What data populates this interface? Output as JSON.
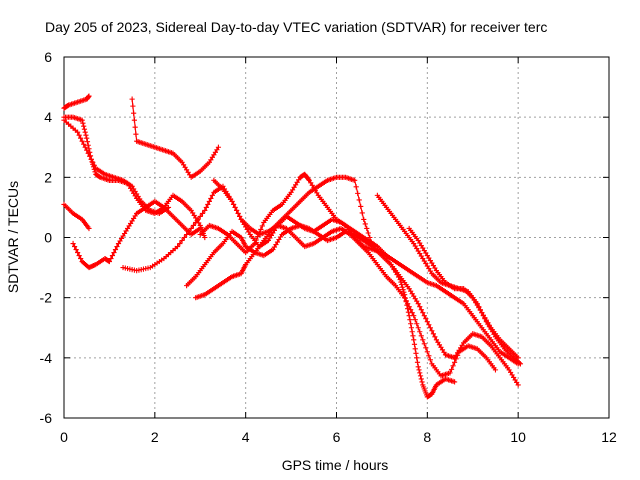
{
  "chart_data": {
    "type": "scatter",
    "title": "Day 205 of 2023, Sidereal Day-to-day VTEC variation (SDTVAR) for receiver terc",
    "xlabel": "GPS time / hours",
    "ylabel": "SDTVAR / TECUs",
    "xlim": [
      0,
      12
    ],
    "ylim": [
      -6,
      6
    ],
    "xticks": [
      "0",
      "2",
      "4",
      "6",
      "8",
      "10",
      "12"
    ],
    "yticks": [
      "-6",
      "-4",
      "-2",
      "0",
      "2",
      "4",
      "6"
    ],
    "grid": true,
    "marker": "+",
    "color": "#ff0000",
    "series": [
      {
        "name": "trace-1",
        "x": [
          0.0,
          0.1,
          0.3,
          0.5,
          0.55
        ],
        "y": [
          4.3,
          4.4,
          4.5,
          4.6,
          4.7
        ]
      },
      {
        "name": "trace-2",
        "x": [
          0.0,
          0.2,
          0.4,
          0.5,
          0.6,
          0.7,
          0.8,
          1.0,
          1.2,
          1.4,
          1.6,
          1.8,
          2.0,
          2.2,
          2.4,
          2.6,
          2.8,
          3.0,
          3.1
        ],
        "y": [
          4.0,
          4.0,
          3.9,
          3.3,
          2.6,
          2.1,
          2.0,
          1.9,
          1.9,
          1.8,
          1.3,
          0.9,
          0.8,
          1.0,
          1.4,
          1.2,
          0.9,
          0.4,
          0.0
        ]
      },
      {
        "name": "trace-3",
        "x": [
          0.0,
          0.3,
          0.5,
          0.7,
          0.9,
          1.1,
          1.3,
          1.5,
          1.7,
          1.9,
          2.1,
          2.3
        ],
        "y": [
          3.9,
          3.5,
          2.9,
          2.3,
          2.1,
          2.0,
          1.9,
          1.7,
          1.2,
          0.9,
          0.8,
          1.0
        ]
      },
      {
        "name": "trace-4",
        "x": [
          1.5,
          1.6,
          1.8,
          2.0,
          2.2,
          2.4,
          2.6,
          2.8,
          3.0,
          3.2,
          3.4
        ],
        "y": [
          4.6,
          3.2,
          3.1,
          3.0,
          2.9,
          2.8,
          2.5,
          2.0,
          2.2,
          2.5,
          3.0
        ]
      },
      {
        "name": "trace-5",
        "x": [
          0.0,
          0.2,
          0.4,
          0.55
        ],
        "y": [
          1.1,
          0.8,
          0.6,
          0.3
        ]
      },
      {
        "name": "trace-6",
        "x": [
          0.2,
          0.4,
          0.55,
          0.7,
          0.9,
          1.0,
          1.2,
          1.4,
          1.6,
          1.8,
          2.0,
          2.2,
          2.4,
          2.6,
          2.8,
          3.0
        ],
        "y": [
          -0.2,
          -0.8,
          -1.0,
          -0.9,
          -0.7,
          -0.8,
          -0.2,
          0.3,
          0.8,
          1.0,
          1.2,
          1.0,
          0.7,
          0.4,
          0.1,
          0.3
        ]
      },
      {
        "name": "trace-7",
        "x": [
          1.3,
          1.6,
          1.9,
          2.2,
          2.5,
          2.8,
          3.1,
          3.3,
          3.5,
          3.7,
          3.9,
          4.1,
          4.3,
          4.5,
          4.7,
          4.9,
          5.1,
          5.3,
          5.5,
          5.7,
          5.9,
          6.1,
          6.3,
          6.5,
          6.7,
          6.9,
          7.1,
          7.3,
          7.5,
          7.7,
          7.9,
          8.1,
          8.3,
          8.5,
          8.7,
          8.9,
          9.1,
          9.3,
          9.5
        ],
        "y": [
          -1.0,
          -1.1,
          -1.0,
          -0.7,
          -0.3,
          0.3,
          0.9,
          1.5,
          1.7,
          1.2,
          0.6,
          0.3,
          0.1,
          0.2,
          0.4,
          0.3,
          0.0,
          -0.3,
          -0.2,
          0.0,
          0.2,
          0.3,
          0.1,
          -0.2,
          -0.5,
          -0.9,
          -1.3,
          -1.6,
          -2.0,
          -2.6,
          -3.4,
          -4.2,
          -4.6,
          -4.5,
          -3.8,
          -3.6,
          -3.7,
          -4.0,
          -4.4
        ]
      },
      {
        "name": "trace-8",
        "x": [
          2.7,
          2.9,
          3.1,
          3.3,
          3.5,
          3.7,
          3.9,
          4.0,
          4.2,
          4.4,
          4.6,
          4.8,
          5.0,
          5.2,
          5.4,
          5.6,
          5.8,
          6.0,
          6.2,
          6.4,
          6.6,
          6.8,
          7.0,
          7.2,
          7.4,
          7.6,
          7.8,
          8.0,
          8.2,
          8.4,
          8.6,
          8.8,
          9.0,
          9.2,
          9.4,
          9.6,
          9.8,
          10.0
        ],
        "y": [
          -1.6,
          -1.3,
          -0.9,
          -0.5,
          -0.2,
          0.2,
          0.0,
          -0.3,
          -0.5,
          -0.6,
          -0.4,
          0.1,
          0.3,
          0.4,
          0.3,
          0.1,
          -0.1,
          0.0,
          0.2,
          0.1,
          -0.1,
          -0.3,
          -0.6,
          -0.9,
          -1.3,
          -1.7,
          -2.2,
          -2.8,
          -3.4,
          -3.9,
          -4.0,
          -3.5,
          -3.2,
          -3.3,
          -3.6,
          -4.0,
          -4.4,
          -4.9
        ]
      },
      {
        "name": "trace-9",
        "x": [
          2.9,
          3.1,
          3.3,
          3.5,
          3.7,
          3.9,
          4.0,
          4.2,
          4.4,
          4.6,
          4.8,
          5.0,
          5.2,
          5.4,
          5.6,
          5.8,
          6.0,
          6.2,
          6.4,
          6.6,
          6.8,
          7.0,
          7.2,
          7.4,
          7.5,
          7.6,
          7.7,
          7.8,
          7.9,
          8.0,
          8.1,
          8.2,
          8.4,
          8.6
        ],
        "y": [
          -2.0,
          -1.9,
          -1.7,
          -1.5,
          -1.3,
          -1.2,
          -0.9,
          -0.5,
          -0.1,
          0.3,
          0.6,
          0.9,
          1.2,
          1.5,
          1.7,
          1.9,
          2.0,
          2.0,
          1.9,
          0.6,
          -0.3,
          -0.6,
          -0.9,
          -1.4,
          -1.9,
          -2.6,
          -3.4,
          -4.3,
          -4.9,
          -5.3,
          -5.2,
          -4.9,
          -4.7,
          -4.8
        ]
      },
      {
        "name": "trace-10",
        "x": [
          3.0,
          3.2,
          3.4,
          3.6,
          3.8,
          4.0,
          4.2,
          4.4,
          4.6,
          4.8,
          5.0,
          5.2,
          5.3,
          5.4,
          5.6,
          5.8,
          6.0,
          6.2,
          6.4,
          6.6,
          6.8,
          7.0,
          7.2,
          7.4,
          7.6,
          7.8,
          8.0,
          8.2,
          8.4,
          8.6,
          8.8,
          9.0,
          9.2,
          9.4,
          9.6,
          9.8,
          10.0
        ],
        "y": [
          0.1,
          0.4,
          0.3,
          0.1,
          -0.2,
          -0.5,
          -0.2,
          0.5,
          0.9,
          1.1,
          1.5,
          2.0,
          2.1,
          1.9,
          1.4,
          1.0,
          0.6,
          0.4,
          0.0,
          -0.3,
          -0.4,
          -0.5,
          -0.7,
          -0.9,
          -1.1,
          -1.3,
          -1.5,
          -1.6,
          -1.8,
          -2.0,
          -2.2,
          -2.6,
          -3.0,
          -3.4,
          -3.8,
          -4.0,
          -4.2
        ]
      },
      {
        "name": "trace-11",
        "x": [
          6.9,
          7.1,
          7.3,
          7.5,
          7.7,
          7.9,
          8.1,
          8.3,
          8.5,
          8.7,
          8.9,
          9.1,
          9.3,
          9.5,
          9.7,
          9.9,
          10.05
        ],
        "y": [
          1.4,
          1.0,
          0.6,
          0.2,
          -0.2,
          -0.7,
          -1.2,
          -1.5,
          -1.6,
          -1.7,
          -1.8,
          -2.2,
          -2.8,
          -3.3,
          -3.7,
          -4.0,
          -4.2
        ]
      },
      {
        "name": "trace-12",
        "x": [
          7.6,
          7.8,
          8.0,
          8.2,
          8.4,
          8.6,
          8.8,
          9.0,
          9.2,
          9.4,
          9.6,
          9.8,
          10.0
        ],
        "y": [
          0.3,
          -0.1,
          -0.6,
          -1.1,
          -1.5,
          -1.7,
          -1.7,
          -2.0,
          -2.5,
          -3.0,
          -3.4,
          -3.7,
          -4.0
        ]
      },
      {
        "name": "trace-13",
        "x": [
          3.3,
          3.5,
          3.7,
          3.9,
          4.1,
          4.3,
          4.5,
          4.7,
          4.9,
          5.1,
          5.3,
          5.5,
          5.7,
          5.9,
          6.1,
          6.3,
          6.5,
          6.7,
          6.9,
          7.1
        ],
        "y": [
          1.9,
          1.6,
          1.2,
          0.6,
          0.1,
          -0.3,
          -0.1,
          0.4,
          0.7,
          0.5,
          0.3,
          0.2,
          0.4,
          0.6,
          0.5,
          0.3,
          0.1,
          -0.1,
          -0.3,
          -0.6
        ]
      }
    ]
  }
}
